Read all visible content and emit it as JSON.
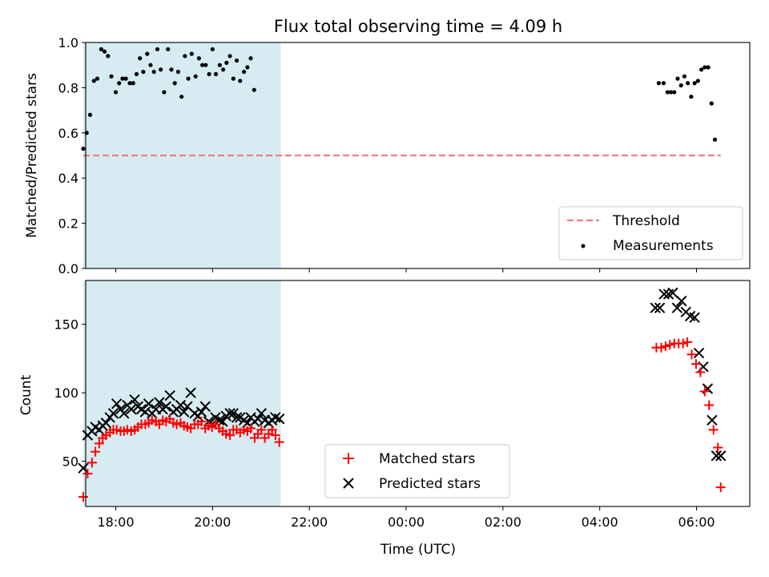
{
  "chart_data": [
    {
      "type": "scatter",
      "title": "Flux total observing time = 4.09 h",
      "ylabel": "Matched/Predicted stars",
      "ylim": [
        0.0,
        1.0
      ],
      "yticks": [
        "0.0",
        "0.2",
        "0.4",
        "0.6",
        "0.8",
        "1.0"
      ],
      "xlim": [
        17.38,
        31.1
      ],
      "shaded_span": [
        17.33,
        21.41
      ],
      "shade_color": "#add8e6",
      "grid": false,
      "legend_position": "lower right",
      "legend": {
        "threshold": "Threshold",
        "measurements": "Measurements"
      },
      "threshold": {
        "name": "Threshold",
        "y": 0.5,
        "x_range": [
          17.33,
          30.5
        ],
        "color": "#f08080"
      },
      "series": [
        {
          "name": "Measurements",
          "color": "#000000",
          "x": [
            17.33,
            17.4,
            17.47,
            17.55,
            17.62,
            17.7,
            17.77,
            17.84,
            17.91,
            18.0,
            18.07,
            18.14,
            18.21,
            18.29,
            18.36,
            18.43,
            18.5,
            18.57,
            18.65,
            18.72,
            18.79,
            18.86,
            18.93,
            19.0,
            19.08,
            19.15,
            19.22,
            19.29,
            19.36,
            19.43,
            19.5,
            19.57,
            19.65,
            19.72,
            19.79,
            19.86,
            19.93,
            20.0,
            20.07,
            20.15,
            20.22,
            20.29,
            20.36,
            20.43,
            20.5,
            20.57,
            20.65,
            20.72,
            20.79,
            20.86,
            20.93,
            21.0,
            21.07,
            21.15,
            21.22,
            21.29,
            21.36,
            21.41,
            29.22,
            29.32,
            29.4,
            29.47,
            29.54,
            29.61,
            29.68,
            29.75,
            29.82,
            29.89,
            29.96,
            30.03,
            30.1,
            30.17,
            30.24,
            30.31,
            30.38,
            30.45,
            30.52
          ],
          "y": [
            0.53,
            0.6,
            0.68,
            0.83,
            0.84,
            0.97,
            0.96,
            0.94,
            0.85,
            0.78,
            0.82,
            0.84,
            0.84,
            0.82,
            0.82,
            0.86,
            0.93,
            0.87,
            0.95,
            0.9,
            0.87,
            0.97,
            0.88,
            0.78,
            0.97,
            0.88,
            0.82,
            0.87,
            0.76,
            0.94,
            0.84,
            0.95,
            0.85,
            0.93,
            0.9,
            0.9,
            0.86,
            0.97,
            0.86,
            0.9,
            0.88,
            0.91,
            0.94,
            0.84,
            0.92,
            0.83,
            0.87,
            0.89,
            0.93,
            0.79,
            null,
            null,
            null,
            null,
            null,
            null,
            null,
            null,
            0.82,
            0.82,
            0.78,
            0.78,
            0.78,
            0.84,
            0.81,
            0.85,
            0.82,
            0.76,
            0.82,
            0.83,
            0.88,
            0.89,
            0.89,
            0.73,
            0.57,
            null,
            null
          ]
        }
      ]
    },
    {
      "type": "scatter",
      "xlabel": "Time (UTC)",
      "ylabel": "Count",
      "ylim": [
        17,
        182
      ],
      "yticks": [
        "50",
        "100",
        "150"
      ],
      "xticks": [
        "18:00",
        "20:00",
        "22:00",
        "00:00",
        "02:00",
        "04:00",
        "06:00"
      ],
      "xlim": [
        17.38,
        31.1
      ],
      "shaded_span": [
        17.33,
        21.41
      ],
      "shade_color": "#add8e6",
      "grid": false,
      "legend_position": "lower center",
      "legend": {
        "matched": "Matched stars",
        "predicted": "Predicted stars"
      },
      "series": [
        {
          "name": "Matched stars",
          "marker": "+",
          "color": "#ff0000",
          "x": [
            17.33,
            17.42,
            17.51,
            17.58,
            17.66,
            17.73,
            17.8,
            17.88,
            17.95,
            18.02,
            18.1,
            18.17,
            18.24,
            18.32,
            18.39,
            18.46,
            18.53,
            18.61,
            18.68,
            18.75,
            18.83,
            18.9,
            18.97,
            19.04,
            19.12,
            19.19,
            19.26,
            19.34,
            19.41,
            19.48,
            19.55,
            19.63,
            19.7,
            19.77,
            19.85,
            19.92,
            19.99,
            20.06,
            20.14,
            20.21,
            20.28,
            20.36,
            20.43,
            20.5,
            20.57,
            20.65,
            20.72,
            20.79,
            20.87,
            20.94,
            21.01,
            21.08,
            21.16,
            21.23,
            21.3,
            21.38,
            29.17,
            29.27,
            29.36,
            29.45,
            29.54,
            29.63,
            29.72,
            29.81,
            29.9,
            29.99,
            30.08,
            30.17,
            30.26,
            30.35,
            30.44,
            30.5
          ],
          "y": [
            24,
            41,
            49,
            57,
            63,
            67,
            69,
            71,
            73,
            73,
            72,
            72,
            73,
            72,
            73,
            75,
            77,
            77,
            78,
            80,
            79,
            77,
            80,
            79,
            81,
            78,
            77,
            78,
            76,
            75,
            74,
            77,
            77,
            79,
            74,
            76,
            75,
            77,
            74,
            72,
            70,
            69,
            73,
            73,
            71,
            73,
            72,
            74,
            67,
            70,
            73,
            67,
            70,
            73,
            69,
            64,
            133,
            133,
            134,
            135,
            136,
            136,
            136,
            137,
            128,
            121,
            115,
            101,
            91,
            73,
            60,
            31
          ]
        },
        {
          "name": "Predicted stars",
          "marker": "x",
          "color": "#000000",
          "x": [
            17.33,
            17.42,
            17.51,
            17.58,
            17.66,
            17.73,
            17.8,
            17.88,
            17.95,
            18.02,
            18.1,
            18.17,
            18.24,
            18.32,
            18.39,
            18.46,
            18.53,
            18.61,
            18.68,
            18.75,
            18.83,
            18.9,
            18.97,
            19.04,
            19.12,
            19.19,
            19.26,
            19.34,
            19.41,
            19.48,
            19.55,
            19.63,
            19.7,
            19.77,
            19.85,
            19.92,
            19.99,
            20.06,
            20.14,
            20.21,
            20.28,
            20.36,
            20.43,
            20.5,
            20.57,
            20.65,
            20.72,
            20.79,
            20.87,
            20.94,
            21.01,
            21.08,
            21.16,
            21.23,
            21.3,
            21.38,
            29.15,
            29.24,
            29.33,
            29.42,
            29.51,
            29.6,
            29.69,
            29.78,
            29.87,
            29.96,
            30.05,
            30.14,
            30.23,
            30.32,
            30.41,
            30.5
          ],
          "y": [
            45,
            69,
            72,
            75,
            73,
            76,
            78,
            82,
            85,
            92,
            88,
            85,
            91,
            88,
            95,
            90,
            88,
            86,
            92,
            85,
            88,
            93,
            88,
            90,
            98,
            86,
            88,
            91,
            86,
            90,
            100,
            85,
            83,
            86,
            90,
            79,
            77,
            82,
            80,
            79,
            83,
            85,
            85,
            82,
            82,
            80,
            78,
            82,
            79,
            81,
            85,
            80,
            78,
            80,
            82,
            81,
            162,
            162,
            172,
            172,
            173,
            162,
            167,
            159,
            156,
            155,
            129,
            119,
            103,
            80,
            54,
            54
          ]
        }
      ]
    }
  ]
}
